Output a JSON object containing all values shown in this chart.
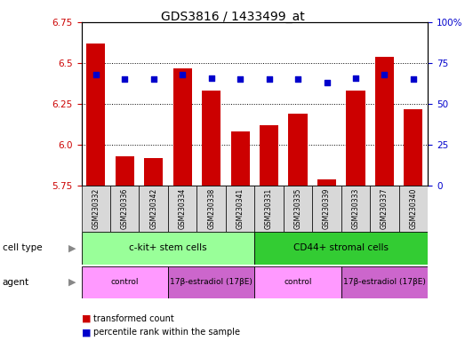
{
  "title": "GDS3816 / 1433499_at",
  "samples": [
    "GSM230332",
    "GSM230336",
    "GSM230342",
    "GSM230334",
    "GSM230338",
    "GSM230341",
    "GSM230331",
    "GSM230335",
    "GSM230339",
    "GSM230333",
    "GSM230337",
    "GSM230340"
  ],
  "red_values": [
    6.62,
    5.93,
    5.92,
    6.47,
    6.33,
    6.08,
    6.12,
    6.19,
    5.79,
    6.33,
    6.54,
    6.22
  ],
  "blue_values": [
    68,
    65,
    65,
    68,
    66,
    65,
    65,
    65,
    63,
    66,
    68,
    65
  ],
  "ylim_left": [
    5.75,
    6.75
  ],
  "ylim_right": [
    0,
    100
  ],
  "yticks_left": [
    5.75,
    6.0,
    6.25,
    6.5,
    6.75
  ],
  "yticks_right": [
    0,
    25,
    50,
    75,
    100
  ],
  "ytick_labels_right": [
    "0",
    "25",
    "50",
    "75",
    "100%"
  ],
  "bar_color": "#cc0000",
  "dot_color": "#0000cc",
  "bar_bottom": 5.75,
  "cell_type_groups": [
    {
      "label": "c-kit+ stem cells",
      "start": 0,
      "end": 6,
      "color": "#99ff99"
    },
    {
      "label": "CD44+ stromal cells",
      "start": 6,
      "end": 12,
      "color": "#33cc33"
    }
  ],
  "agent_groups": [
    {
      "label": "control",
      "start": 0,
      "end": 3,
      "color": "#ff99ff"
    },
    {
      "label": "17β-estradiol (17βE)",
      "start": 3,
      "end": 6,
      "color": "#cc66cc"
    },
    {
      "label": "control",
      "start": 6,
      "end": 9,
      "color": "#ff99ff"
    },
    {
      "label": "17β-estradiol (17βE)",
      "start": 9,
      "end": 12,
      "color": "#cc66cc"
    }
  ],
  "legend_red": "transformed count",
  "legend_blue": "percentile rank within the sample",
  "label_cell_type": "cell type",
  "label_agent": "agent",
  "grid_color": "black",
  "bg_color": "#d8d8d8",
  "title_fontsize": 10,
  "axis_color_left": "#cc0000",
  "axis_color_right": "#0000cc",
  "white": "#ffffff"
}
